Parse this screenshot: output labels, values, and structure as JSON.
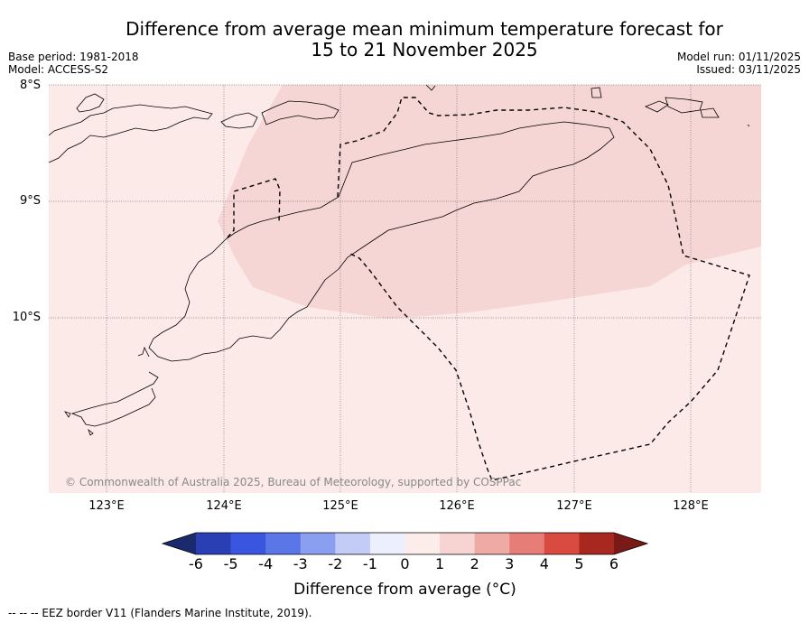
{
  "title": {
    "line1": "Difference from average mean minimum temperature forecast for",
    "line2": "15 to 21 November 2025"
  },
  "meta": {
    "base_period": "Base period: 1981-2018",
    "model": "Model: ACCESS-S2",
    "model_run": "Model run: 01/11/2025",
    "issued": "Issued: 03/11/2025"
  },
  "axes": {
    "lat_labels": [
      "8°S",
      "9°S",
      "10°S"
    ],
    "lon_labels": [
      "123°E",
      "124°E",
      "125°E",
      "126°E",
      "127°E",
      "128°E"
    ]
  },
  "copyright": "© Commonwealth of Australia 2025, Bureau of Meteorology, supported by COSPPac",
  "colorbar": {
    "ticks": [
      "-6",
      "-5",
      "-4",
      "-3",
      "-2",
      "-1",
      "0",
      "1",
      "2",
      "3",
      "4",
      "5",
      "6"
    ],
    "colors": [
      "#1a2a6c",
      "#2b3fb4",
      "#3a55e0",
      "#5b76e6",
      "#8a9ff0",
      "#c3cbf7",
      "#eceffd",
      "#fcecea",
      "#f7d4d2",
      "#efaaa5",
      "#e67d76",
      "#d94a40",
      "#a8281f",
      "#7a1a16"
    ],
    "label": "Difference from average (°C)"
  },
  "map_fills": {
    "background": "#fceae8",
    "anomaly_1_2": "#f5d6d5"
  },
  "footer": "--  --  -- EEZ border V11 (Flanders Marine Institute, 2019)."
}
